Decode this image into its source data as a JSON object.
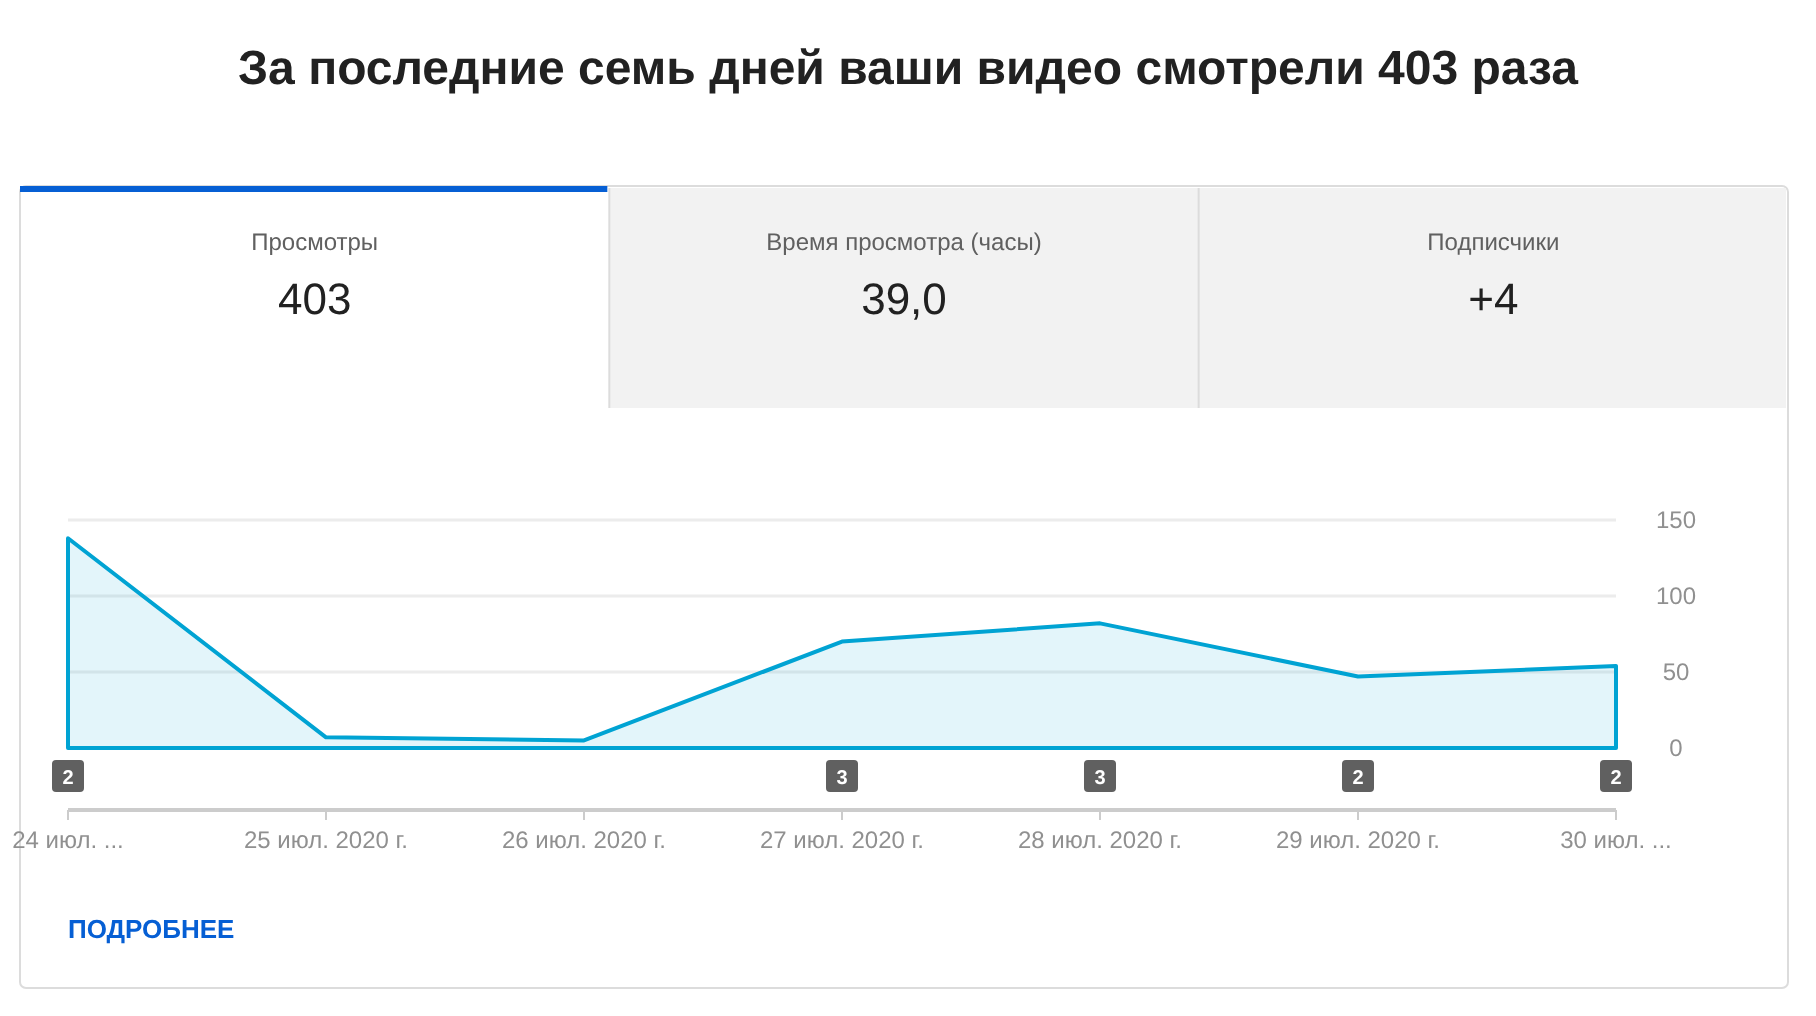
{
  "chart_data": {
    "type": "area",
    "title": "За последние семь дней ваши видео смотрели 403 раза",
    "categories": [
      "24 июл. ...",
      "25 июл. 2020 г.",
      "26 июл. 2020 г.",
      "27 июл. 2020 г.",
      "28 июл. 2020 г.",
      "29 июл. 2020 г.",
      "30 июл. ..."
    ],
    "series": [
      {
        "color": "#00a3d3",
        "values": [
          138,
          7,
          5,
          70,
          82,
          47,
          54
        ]
      }
    ],
    "ylim": [
      0,
      150
    ],
    "yticks": [
      0,
      50,
      100,
      150
    ],
    "grid": "y",
    "annotations": [
      "Просмотры",
      "403",
      "Время просмотра (часы)",
      "39,0",
      "Подписчики",
      "+4",
      "ПОДРОБНЕЕ",
      {
        "text": "2",
        "x": "24 июл. ...",
        "y": 0
      },
      {
        "text": "3",
        "x": "27 июл. 2020 г.",
        "y": 0
      },
      {
        "text": "3",
        "x": "28 июл. 2020 г.",
        "y": 0
      },
      {
        "text": "2",
        "x": "29 июл. 2020 г.",
        "y": 0
      },
      {
        "text": "2",
        "x": "30 июл. ...",
        "y": 0
      }
    ]
  }
}
